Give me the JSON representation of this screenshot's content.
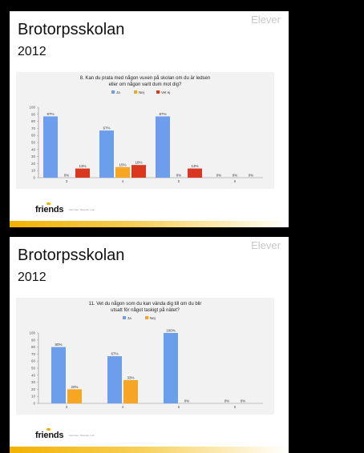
{
  "slides": [
    {
      "label": "Elever",
      "title": "Brotorpsskolan",
      "year": "2012",
      "logo": "friends",
      "tagline": "Kamrater. Respekt. Lek.",
      "chart_data": {
        "type": "bar",
        "title": "8. Kan du prata med någon vuxen på skolan om du är ledsen eller om någon varit dum mot dig?",
        "categories": [
          "3",
          "4",
          "5",
          "6"
        ],
        "series": [
          {
            "name": "Ja",
            "color": "#6d9eeb",
            "values": [
              87,
              67,
              87,
              0
            ]
          },
          {
            "name": "Nej",
            "color": "#f6a623",
            "values": [
              0,
              15,
              0,
              0
            ]
          },
          {
            "name": "Vet ej",
            "color": "#d9381e",
            "values": [
              13,
              18,
              13,
              0
            ]
          }
        ],
        "value_labels": [
          [
            "87%",
            "67%",
            "87%",
            "0%"
          ],
          [
            "0%",
            "15%",
            "0%",
            "0%"
          ],
          [
            "13%",
            "18%",
            "13%",
            "0%"
          ]
        ],
        "ylim": [
          0,
          100
        ],
        "yticks": [
          "0",
          "10",
          "20",
          "30",
          "40",
          "50",
          "60",
          "70",
          "80",
          "90",
          "100"
        ],
        "legend": "top",
        "grid": false
      }
    },
    {
      "label": "Elever",
      "title": "Brotorpsskolan",
      "year": "2012",
      "logo": "friends",
      "tagline": "Kamrater. Respekt. Lek.",
      "chart_data": {
        "type": "bar",
        "title": "11. Vet du någon som du kan vända dig till om du blir utsatt för något taskigt på nätet?",
        "categories": [
          "3",
          "4",
          "5",
          "6"
        ],
        "series": [
          {
            "name": "Ja",
            "color": "#6d9eeb",
            "values": [
              80,
              67,
              100,
              0
            ]
          },
          {
            "name": "Nej",
            "color": "#f6a623",
            "values": [
              20,
              33,
              0,
              0
            ]
          }
        ],
        "value_labels": [
          [
            "80%",
            "67%",
            "100%",
            "0%"
          ],
          [
            "20%",
            "33%",
            "0%",
            "0%"
          ]
        ],
        "ylim": [
          0,
          100
        ],
        "yticks": [
          "0",
          "10",
          "20",
          "30",
          "40",
          "50",
          "60",
          "70",
          "80",
          "90",
          "100"
        ],
        "legend": "top",
        "grid": false
      }
    }
  ]
}
